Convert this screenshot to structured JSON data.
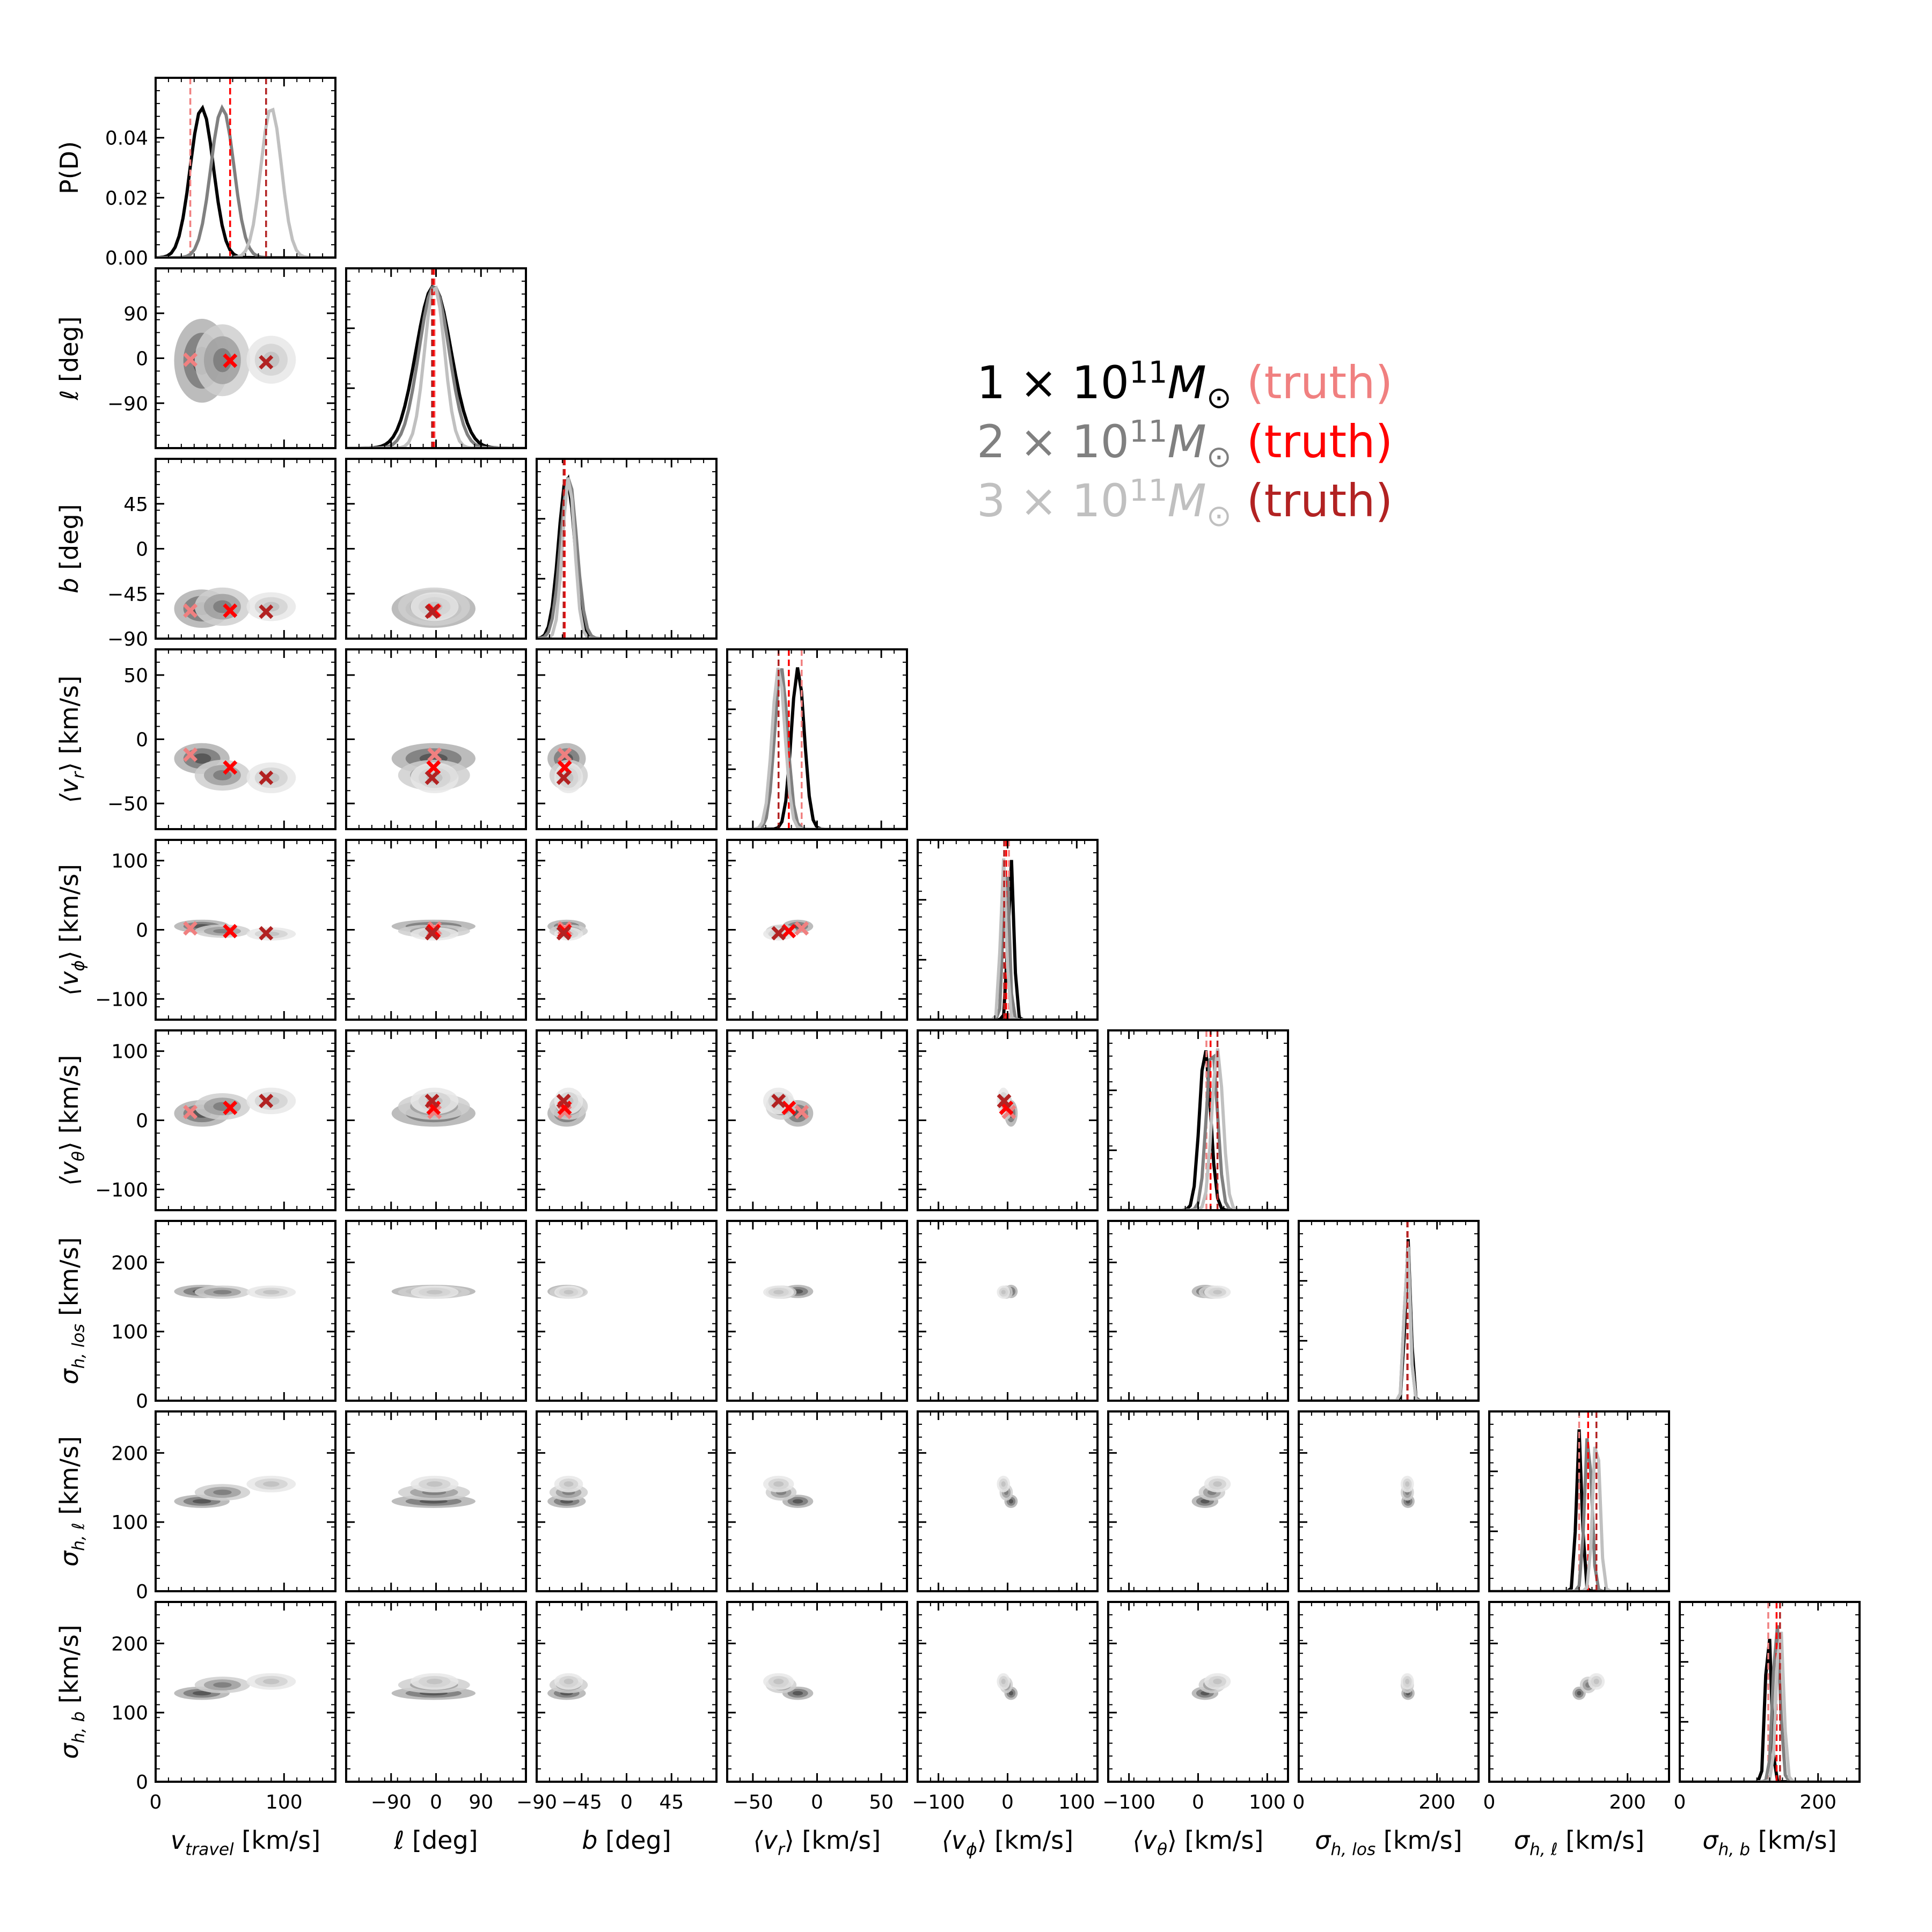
{
  "chart_data": {
    "type": "corner",
    "params": [
      {
        "id": "vtravel",
        "label": "v",
        "label_sub": "travel",
        "unit": "[km/s]",
        "italic": true,
        "range": [
          0,
          140
        ],
        "ticks": [
          0,
          100
        ]
      },
      {
        "id": "l",
        "label": "ℓ",
        "unit": "[deg]",
        "italic": true,
        "range": [
          -180,
          180
        ],
        "ticks": [
          -90,
          0,
          90
        ]
      },
      {
        "id": "b",
        "label": "b",
        "unit": "[deg]",
        "italic": true,
        "range": [
          -90,
          90
        ],
        "ticks": [
          -90,
          -45,
          0,
          45
        ]
      },
      {
        "id": "vr",
        "label": "⟨v",
        "label_sub": "r",
        "label_end": "⟩",
        "unit": "[km/s]",
        "italic": true,
        "range": [
          -70,
          70
        ],
        "ticks": [
          -50,
          0,
          50
        ]
      },
      {
        "id": "vphi",
        "label": "⟨v",
        "label_sub": "ϕ",
        "label_end": "⟩",
        "unit": "[km/s]",
        "italic": true,
        "range": [
          -130,
          130
        ],
        "ticks": [
          -100,
          0,
          100
        ]
      },
      {
        "id": "vtheta",
        "label": "⟨v",
        "label_sub": "θ",
        "label_end": "⟩",
        "unit": "[km/s]",
        "italic": true,
        "range": [
          -130,
          130
        ],
        "ticks": [
          -100,
          0,
          100
        ]
      },
      {
        "id": "slos",
        "label": "σ",
        "label_sub": "h, los",
        "unit": "[km/s]",
        "italic": true,
        "range": [
          0,
          260
        ],
        "ticks": [
          0,
          100,
          200
        ],
        "xticks": [
          0,
          200
        ]
      },
      {
        "id": "sl",
        "label": "σ",
        "label_sub": "h, ℓ",
        "unit": "[km/s]",
        "italic": true,
        "range": [
          0,
          260
        ],
        "ticks": [
          0,
          100,
          200
        ],
        "xticks": [
          0,
          200
        ]
      },
      {
        "id": "sb",
        "label": "σ",
        "label_sub": "h, b",
        "unit": "[km/s]",
        "italic": true,
        "range": [
          0,
          260
        ],
        "ticks": [
          0,
          100,
          200
        ],
        "xticks": [
          0,
          200
        ]
      }
    ],
    "hist_ylabel": "P(D)",
    "hist_yticks": [
      "0.00",
      "0.02",
      "0.04"
    ],
    "hist_ylim": [
      0,
      0.06
    ],
    "series": [
      {
        "name": "1 × 10^11 M⊙",
        "mass_coef": "1",
        "color": "#000000",
        "truth_color": "#f08080",
        "mean": [
          36,
          -5,
          -60,
          -15,
          5,
          10,
          158,
          130,
          128
        ],
        "sd": [
          9,
          35,
          8,
          5,
          4,
          8,
          4,
          4,
          4
        ],
        "truth": [
          27,
          -3,
          -62,
          -12,
          2,
          12,
          158,
          130,
          128
        ]
      },
      {
        "name": "2 × 10^11 M⊙",
        "mass_coef": "2",
        "color": "#808080",
        "truth_color": "#ff0000",
        "mean": [
          52,
          -4,
          -58,
          -28,
          -2,
          20,
          157,
          143,
          140
        ],
        "sd": [
          9,
          30,
          8,
          5,
          4,
          8,
          4,
          5,
          5
        ],
        "truth": [
          58,
          -5,
          -62,
          -22,
          -2,
          18,
          157,
          143,
          140
        ]
      },
      {
        "name": "3 × 10^11 M⊙",
        "mass_coef": "3",
        "color": "#c0c0c0",
        "truth_color": "#b22222",
        "mean": [
          90,
          -3,
          -58,
          -30,
          -6,
          28,
          157,
          155,
          145
        ],
        "sd": [
          8,
          20,
          6,
          5,
          4,
          8,
          4,
          5,
          5
        ],
        "truth": [
          86,
          -8,
          -63,
          -30,
          -5,
          28,
          157,
          155,
          145
        ]
      }
    ],
    "legend": {
      "placement": "upper-right",
      "truth_label": "(truth)"
    }
  }
}
